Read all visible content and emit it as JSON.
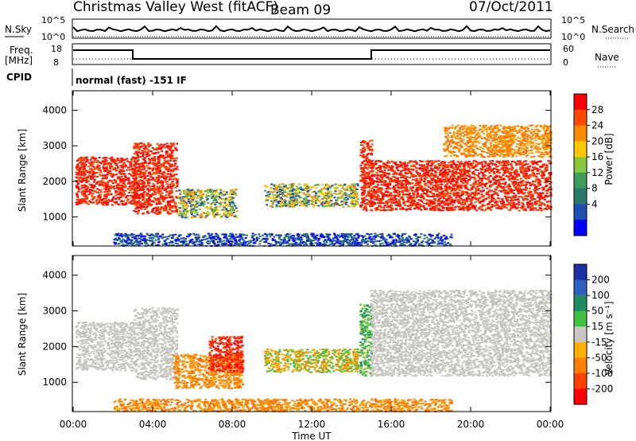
{
  "header": {
    "station": "Christmas Valley West (fitACF)",
    "beam": "Beam 09",
    "date": "07/Oct/2011"
  },
  "top_panels": {
    "nsky_label": "N.Sky",
    "nsearch_label": "N.Search",
    "noise_ticks_left": [
      "10^5",
      "10^0"
    ],
    "noise_ticks_right": [
      "10^5",
      "10^0"
    ],
    "freq_label_line1": "Freq.",
    "freq_label_line2": "[MHz]",
    "freq_ticks": [
      "18",
      "8"
    ],
    "nave_label": "Nave",
    "nave_ticks": [
      "60",
      "0"
    ],
    "cpid_label": "CPID",
    "cpid_text": "normal (fast) -151 IF"
  },
  "chart_data": [
    {
      "type": "heatmap",
      "name": "power",
      "ylabel": "Slant Range [km]",
      "xlabel": "",
      "xlim_hours": [
        0,
        24
      ],
      "ylim_km": [
        180,
        4550
      ],
      "y_ticks": [
        "1000",
        "2000",
        "3000",
        "4000"
      ],
      "colorbar": {
        "label": "Power [dB]",
        "tick_labels": [
          "28",
          "24",
          "20",
          "16",
          "12",
          "8",
          "4"
        ],
        "colors": [
          "#ff0000",
          "#ff4a00",
          "#ff8a00",
          "#ffc800",
          "#8cc83c",
          "#3c9c5a",
          "#2a7a6c",
          "#1e50b4",
          "#0000ff"
        ]
      },
      "regions": [
        {
          "t0": 0.1,
          "t1": 3.1,
          "r0": 1350,
          "r1": 2700,
          "level": "red"
        },
        {
          "t0": 3.0,
          "t1": 5.2,
          "r0": 1100,
          "r1": 3100,
          "level": "red"
        },
        {
          "t0": 5.2,
          "t1": 8.2,
          "r0": 1000,
          "r1": 1800,
          "level": "mixed"
        },
        {
          "t0": 9.6,
          "t1": 14.3,
          "r0": 1300,
          "r1": 1950,
          "level": "mixed"
        },
        {
          "t0": 14.4,
          "t1": 15.0,
          "r0": 1200,
          "r1": 3200,
          "level": "red"
        },
        {
          "t0": 14.9,
          "t1": 24.0,
          "r0": 1200,
          "r1": 2600,
          "level": "red"
        },
        {
          "t0": 18.6,
          "t1": 24.0,
          "r0": 2700,
          "r1": 3600,
          "level": "orange"
        },
        {
          "t0": 2.0,
          "t1": 19.0,
          "r0": 200,
          "r1": 550,
          "level": "blue"
        }
      ]
    },
    {
      "type": "heatmap",
      "name": "velocity",
      "ylabel": "Slant Range [km]",
      "xlabel": "Time UT",
      "xlim_hours": [
        0,
        24
      ],
      "ylim_km": [
        180,
        4550
      ],
      "y_ticks": [
        "1000",
        "2000",
        "3000",
        "4000"
      ],
      "x_ticks": [
        "00:00",
        "04:00",
        "08:00",
        "12:00",
        "16:00",
        "20:00",
        "00:00"
      ],
      "colorbar": {
        "label": "Velocity [m s⁻¹]",
        "tick_labels": [
          "200",
          "100",
          "50",
          "15",
          "-15",
          "-50",
          "-100",
          "-200"
        ],
        "colors": [
          "#1c2ea8",
          "#3060c0",
          "#208a60",
          "#40c040",
          "#c8c8c0",
          "#ffb000",
          "#ff8000",
          "#ff4000",
          "#ff0000"
        ]
      },
      "regions": [
        {
          "t0": 0.1,
          "t1": 3.1,
          "r0": 1350,
          "r1": 2700,
          "level": "gray"
        },
        {
          "t0": 3.0,
          "t1": 5.2,
          "r0": 1100,
          "r1": 3100,
          "level": "gray"
        },
        {
          "t0": 5.0,
          "t1": 8.5,
          "r0": 850,
          "r1": 1800,
          "level": "orange"
        },
        {
          "t0": 6.8,
          "t1": 8.5,
          "r0": 1300,
          "r1": 2300,
          "level": "red"
        },
        {
          "t0": 9.6,
          "t1": 14.3,
          "r0": 1300,
          "r1": 1950,
          "level": "orange-green"
        },
        {
          "t0": 14.4,
          "t1": 15.0,
          "r0": 1200,
          "r1": 3200,
          "level": "green"
        },
        {
          "t0": 14.9,
          "t1": 24.0,
          "r0": 1200,
          "r1": 3600,
          "level": "gray"
        },
        {
          "t0": 2.0,
          "t1": 19.0,
          "r0": 200,
          "r1": 550,
          "level": "orange"
        }
      ]
    }
  ]
}
